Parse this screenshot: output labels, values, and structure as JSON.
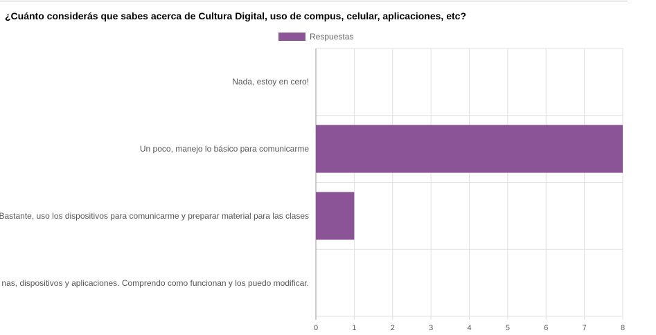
{
  "title": "¿Cuánto considerás que sabes acerca de Cultura Digital, uso de compus, celular, aplicaciones, etc?",
  "chart_data": {
    "type": "bar",
    "orientation": "horizontal",
    "title": "¿Cuánto considerás que sabes acerca de Cultura Digital, uso de compus, celular, aplicaciones, etc?",
    "categories": [
      "Nada, estoy en cero!",
      "Un poco, manejo lo básico para comunicarme",
      "Bastante, uso los dispositivos para comunicarme y preparar material para las clases",
      "nas, dispositivos y aplicaciones. Comprendo como funcionan y los puedo modificar."
    ],
    "series": [
      {
        "name": "Respuestas",
        "values": [
          0,
          8,
          1,
          0
        ],
        "color": "#8a5496"
      }
    ],
    "xlim": [
      0,
      8
    ],
    "xticks": [
      "0",
      "1",
      "2",
      "3",
      "4",
      "5",
      "6",
      "7",
      "8"
    ],
    "grid": true,
    "legend": "top-center"
  }
}
